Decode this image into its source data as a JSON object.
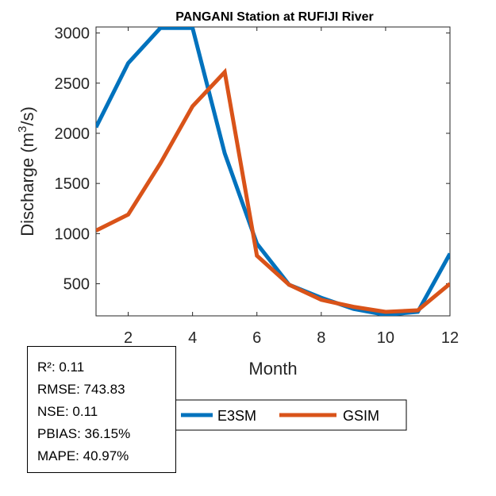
{
  "chart_data": {
    "type": "line",
    "title": "PANGANI  Station at  RUFIJI  River",
    "xlabel": "Month",
    "ylabel_prefix": "Discharge (m",
    "ylabel_sup": "3",
    "ylabel_suffix": "/s)",
    "xlim": [
      1,
      12
    ],
    "ylim": [
      180,
      3060
    ],
    "x": [
      1,
      2,
      3,
      4,
      5,
      6,
      7,
      8,
      9,
      10,
      11,
      12
    ],
    "xticks": [
      2,
      4,
      6,
      8,
      10,
      12
    ],
    "yticks": [
      500,
      1000,
      1500,
      2000,
      2500,
      3000
    ],
    "series": [
      {
        "name": "E3SM",
        "color": "#0072BD",
        "values": [
          2060,
          2700,
          3050,
          3050,
          1800,
          900,
          490,
          360,
          250,
          190,
          220,
          800
        ]
      },
      {
        "name": "GSIM",
        "color": "#D95319",
        "values": [
          1030,
          1190,
          1700,
          2270,
          2610,
          780,
          490,
          340,
          270,
          220,
          235,
          500
        ]
      }
    ],
    "legend_position": "bottom-center"
  },
  "stats": {
    "r2": "R²: 0.11",
    "rmse": "RMSE: 743.83",
    "nse": "NSE: 0.11",
    "pbias": "PBIAS: 36.15%",
    "mape": "MAPE: 40.97%"
  }
}
